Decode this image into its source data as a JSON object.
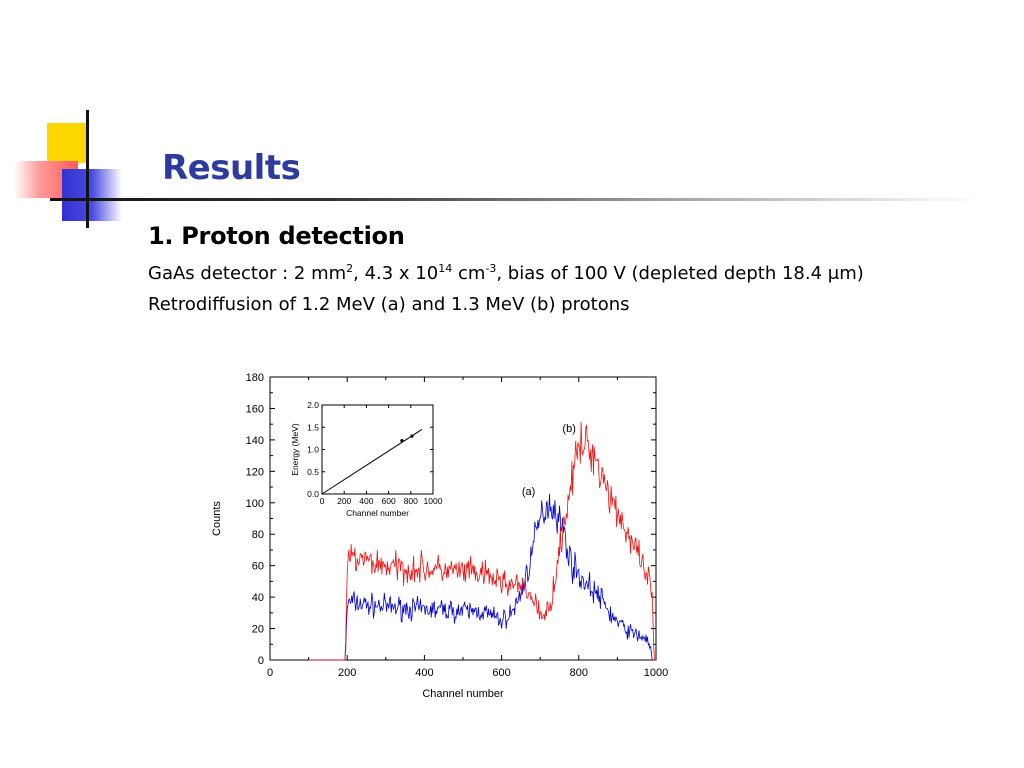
{
  "slide": {
    "title": "Results",
    "heading": "1. Proton detection",
    "line1": {
      "p1": "GaAs detector : 2 mm",
      "sup1": "2",
      "p2": ", 4.3 x 10",
      "sup2": "14",
      "p3": " cm",
      "sup3": "-3",
      "p4": ",  bias of 100 V (depleted depth 18.4 μm)"
    },
    "line2": "Retrodiffusion of 1.2 MeV (a) and 1.3 MeV (b) protons"
  },
  "colors": {
    "title": "#2e3b9c",
    "series_a": "#0000d0",
    "series_b": "#ee1111"
  },
  "chart_data": [
    {
      "type": "line",
      "xlabel": "Channel number",
      "ylabel": "Counts",
      "xlim": [
        0,
        1000
      ],
      "ylim": [
        0,
        180
      ],
      "xticks": [
        "0",
        "200",
        "400",
        "600",
        "800",
        "1000"
      ],
      "yticks": [
        "0",
        "20",
        "40",
        "60",
        "80",
        "100",
        "120",
        "140",
        "160",
        "180"
      ],
      "annotations": [
        {
          "text": "(a)",
          "x": 670,
          "y": 105
        },
        {
          "text": "(b)",
          "x": 775,
          "y": 145
        }
      ],
      "series": [
        {
          "label": "(a)",
          "color": "#0000d0",
          "x": [
            100,
            195,
            200,
            210,
            250,
            300,
            350,
            400,
            450,
            500,
            550,
            600,
            620,
            640,
            660,
            680,
            700,
            720,
            740,
            760,
            780,
            800,
            820,
            840,
            860,
            880,
            900,
            920,
            940,
            960,
            980,
            990,
            1000
          ],
          "y": [
            0,
            0,
            35,
            37,
            35,
            34,
            33,
            32,
            32,
            31,
            31,
            25,
            28,
            36,
            50,
            70,
            90,
            100,
            96,
            82,
            62,
            54,
            48,
            44,
            38,
            30,
            24,
            20,
            17,
            15,
            13,
            0,
            0
          ]
        },
        {
          "label": "(b)",
          "color": "#ee1111",
          "x": [
            100,
            195,
            200,
            210,
            250,
            300,
            350,
            400,
            450,
            500,
            550,
            600,
            650,
            680,
            700,
            710,
            730,
            750,
            770,
            790,
            810,
            830,
            850,
            870,
            890,
            910,
            930,
            950,
            970,
            990,
            995,
            1000
          ],
          "y": [
            0,
            0,
            60,
            65,
            63,
            60,
            58,
            58,
            57,
            56,
            54,
            50,
            46,
            40,
            30,
            25,
            40,
            70,
            100,
            125,
            138,
            135,
            125,
            112,
            100,
            90,
            78,
            68,
            56,
            45,
            0,
            0
          ]
        }
      ]
    },
    {
      "type": "scatter",
      "xlabel": "Channel number",
      "ylabel": "Energy (MeV)",
      "xlim": [
        0,
        1000
      ],
      "ylim": [
        0.0,
        2.0
      ],
      "xticks": [
        "0",
        "200",
        "400",
        "600",
        "800",
        "1000"
      ],
      "yticks": [
        "0.0",
        "0.5",
        "1.0",
        "1.5",
        "2.0"
      ],
      "points": {
        "x": [
          720,
          810
        ],
        "y": [
          1.2,
          1.3
        ]
      },
      "fit_line": {
        "x": [
          0,
          900
        ],
        "y": [
          0.0,
          1.45
        ]
      }
    }
  ]
}
